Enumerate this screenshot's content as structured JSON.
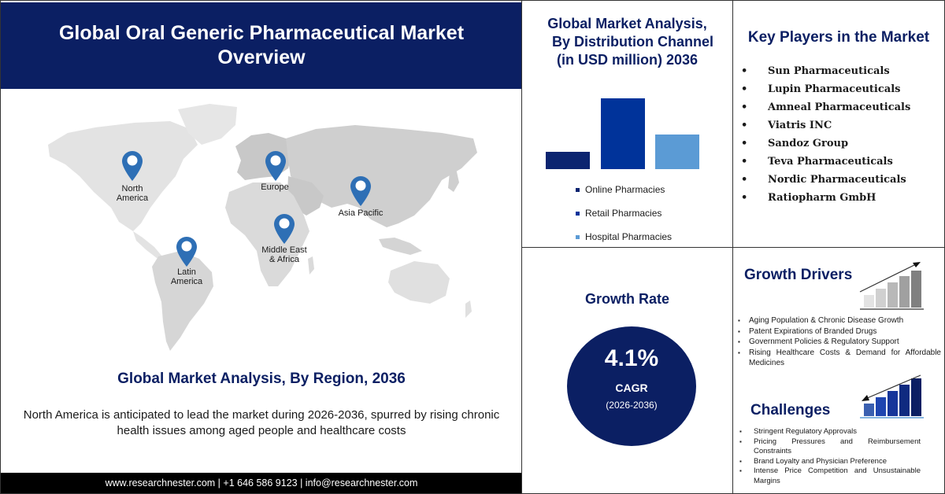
{
  "header": {
    "title": "Global Oral Generic Pharmaceutical Market Overview"
  },
  "map": {
    "regions": [
      {
        "name": "North America",
        "line1": "North",
        "line2": "America"
      },
      {
        "name": "Europe",
        "line1": "Europe",
        "line2": ""
      },
      {
        "name": "Asia Pacific",
        "line1": "Asia Pacific",
        "line2": ""
      },
      {
        "name": "Latin America",
        "line1": "Latin",
        "line2": "America"
      },
      {
        "name": "Middle East & Africa",
        "line1": "Middle East",
        "line2": "& Africa"
      }
    ],
    "pin_color": "#2e6fb5",
    "land_color": "#d9d9d9"
  },
  "region_analysis": {
    "title": "Global Market Analysis, By Region, 2036",
    "description": "North America is anticipated to lead the market during 2026-2036, spurred by rising chronic health issues among aged people and healthcare costs"
  },
  "footer": {
    "contact": "www.researchnester.com | +1 646 586 9123 | info@researchnester.com"
  },
  "distribution": {
    "title_line1": "Global Market Analysis,",
    "title_line2": "By Distribution Channel",
    "title_line3": "(in USD million) 2036",
    "legend": [
      {
        "label": "Online Pharmacies",
        "color": "#0b2470"
      },
      {
        "label": "Retail Pharmacies",
        "color": "#00339a"
      },
      {
        "label": "Hospital Pharmacies",
        "color": "#5b9bd5"
      }
    ]
  },
  "chart_data": {
    "type": "bar",
    "title": "Global Market Analysis, By Distribution Channel (in USD million) 2036",
    "categories": [
      "Online Pharmacies",
      "Retail Pharmacies",
      "Hospital Pharmacies"
    ],
    "values": [
      25,
      100,
      49
    ],
    "value_note": "relative bar heights (no axis shown)",
    "colors": [
      "#0b2470",
      "#00339a",
      "#5b9bd5"
    ],
    "xlabel": "",
    "ylabel": "",
    "grid": false,
    "legend_position": "bottom"
  },
  "key_players": {
    "title": "Key Players in the Market",
    "items": [
      "Sun Pharmaceuticals",
      "Lupin Pharmaceuticals",
      "Amneal Pharmaceuticals",
      "Viatris INC",
      "Sandoz Group",
      "Teva Pharmaceuticals",
      "Nordic Pharmaceuticals",
      "Ratiopharm GmbH"
    ],
    "bullet": "•"
  },
  "growth_rate": {
    "title": "Growth Rate",
    "value": "4.1%",
    "label": "CAGR",
    "period": "(2026-2036)"
  },
  "growth_drivers": {
    "title": "Growth Drivers",
    "bullet": "▪",
    "items": [
      "Aging Population & Chronic Disease Growth",
      "Patent Expirations of Branded Drugs",
      "Government Policies & Regulatory Support",
      "Rising Healthcare Costs & Demand for Affordable Medicines"
    ]
  },
  "challenges": {
    "title": "Challenges",
    "bullet": "▪",
    "items": [
      "Stringent Regulatory Approvals",
      "Pricing Pressures and Reimbursement Constraints",
      "Brand Loyalty and Physician Preference",
      "Intense Price Competition and Unsustainable Margins"
    ]
  },
  "colors": {
    "navy": "#0b1f63",
    "footer_bg": "#000000"
  }
}
